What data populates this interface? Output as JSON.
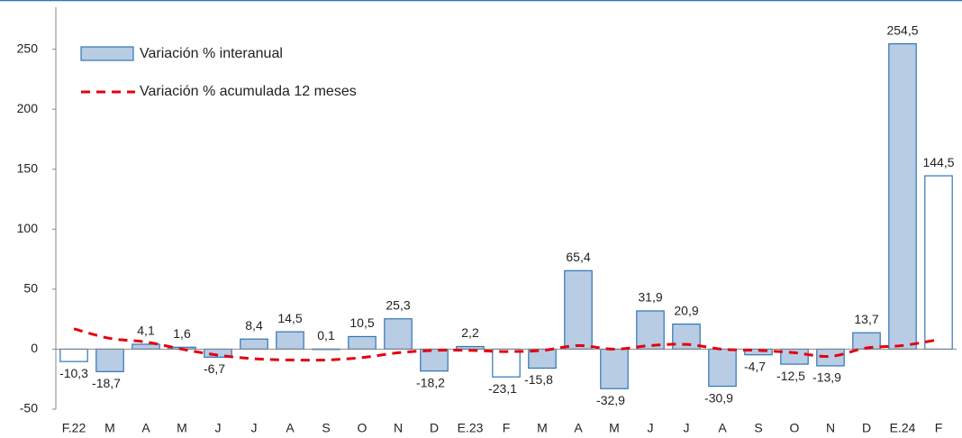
{
  "chart_data": {
    "type": "bar",
    "categories": [
      "F.22",
      "M",
      "A",
      "M",
      "J",
      "J",
      "A",
      "S",
      "O",
      "N",
      "D",
      "E.23",
      "F",
      "M",
      "A",
      "M",
      "J",
      "J",
      "A",
      "S",
      "O",
      "N",
      "D",
      "E.24",
      "F"
    ],
    "series": [
      {
        "name": "Variación % interanual",
        "type": "bar",
        "color": "#b8cce4",
        "stroke": "#2e75b6",
        "colors": [
          "#ffffff",
          "#b8cce4",
          "#b8cce4",
          "#b8cce4",
          "#b8cce4",
          "#b8cce4",
          "#b8cce4",
          "#ffffff",
          "#b8cce4",
          "#b8cce4",
          "#b8cce4",
          "#b8cce4",
          "#ffffff",
          "#b8cce4",
          "#b8cce4",
          "#b8cce4",
          "#b8cce4",
          "#b8cce4",
          "#b8cce4",
          "#b8cce4",
          "#b8cce4",
          "#b8cce4",
          "#b8cce4",
          "#b8cce4",
          "#ffffff"
        ],
        "values": [
          -10.3,
          -18.7,
          4.1,
          1.6,
          -6.7,
          8.4,
          14.5,
          0.1,
          10.5,
          25.3,
          -18.2,
          2.2,
          -23.1,
          -15.8,
          65.4,
          -32.9,
          31.9,
          20.9,
          -30.9,
          -4.7,
          -12.5,
          -13.9,
          13.7,
          254.5,
          144.5
        ],
        "value_labels": [
          "-10,3",
          "-18,7",
          "4,1",
          "1,6",
          "-6,7",
          "8,4",
          "14,5",
          "0,1",
          "10,5",
          "25,3",
          "-18,2",
          "2,2",
          "-23,1",
          "-15,8",
          "65,4",
          "-32,9",
          "31,9",
          "20,9",
          "-30,9",
          "-4,7",
          "-12,5",
          "-13,9",
          "13,7",
          "254,5",
          "144,5"
        ]
      },
      {
        "name": "Variación % acumulada 12 meses",
        "type": "line",
        "color": "#e3000f",
        "values": [
          17,
          9,
          6,
          0,
          -5,
          -8,
          -9,
          -9,
          -7,
          -3,
          -1,
          -1,
          -2,
          -1,
          3,
          0,
          3,
          4,
          0,
          -1,
          -3,
          -6,
          1,
          3,
          8
        ]
      }
    ],
    "ylim": [
      -50,
      285
    ],
    "yticks": [
      -50,
      0,
      50,
      100,
      150,
      200,
      250
    ],
    "grid": false
  }
}
